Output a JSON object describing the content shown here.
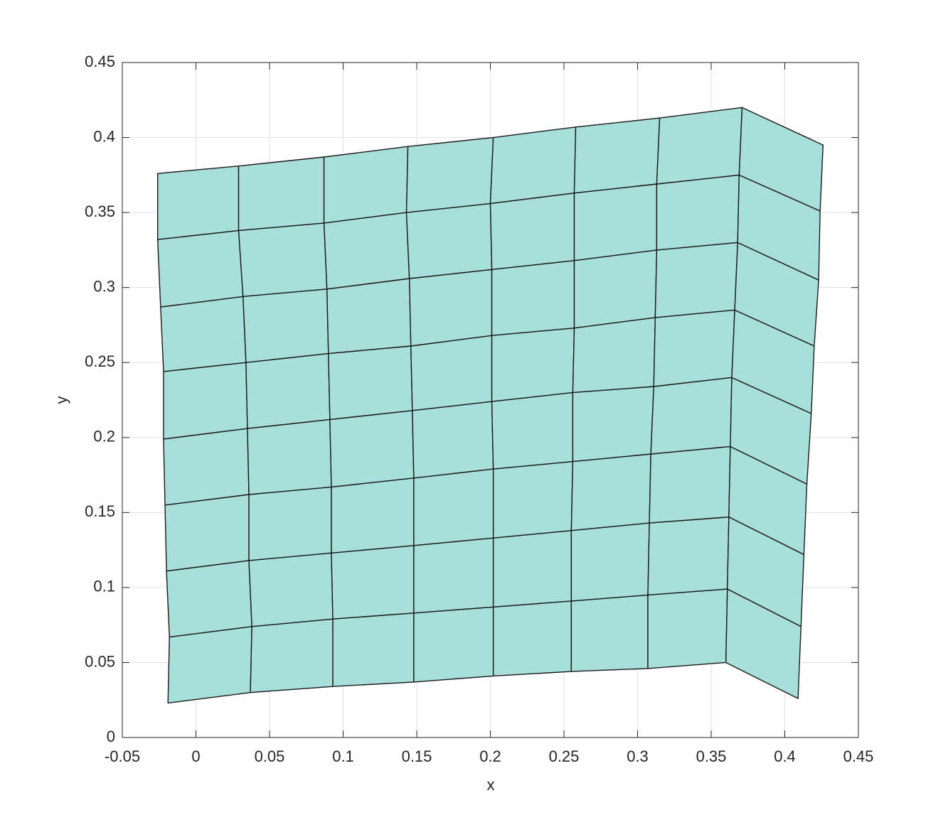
{
  "chart_data": {
    "type": "mesh",
    "xlabel": "x",
    "ylabel": "y",
    "xlim": [
      -0.05,
      0.45
    ],
    "ylim": [
      0,
      0.45
    ],
    "xticks": [
      -0.05,
      0,
      0.05,
      0.1,
      0.15,
      0.2,
      0.25,
      0.3,
      0.35,
      0.4,
      0.45
    ],
    "yticks": [
      0,
      0.05,
      0.1,
      0.15,
      0.2,
      0.25,
      0.3,
      0.35,
      0.4,
      0.45
    ],
    "grid": true,
    "face_color": "#a8dfda",
    "edge_color": "#1a1a1a",
    "x": [
      [
        -0.019,
        0.037,
        0.093,
        0.148,
        0.202,
        0.255,
        0.307,
        0.36,
        0.409
      ],
      [
        -0.018,
        0.038,
        0.093,
        0.148,
        0.202,
        0.255,
        0.307,
        0.361,
        0.411
      ],
      [
        -0.02,
        0.036,
        0.092,
        0.148,
        0.202,
        0.255,
        0.308,
        0.362,
        0.413
      ],
      [
        -0.021,
        0.036,
        0.092,
        0.148,
        0.202,
        0.256,
        0.309,
        0.363,
        0.415
      ],
      [
        -0.022,
        0.035,
        0.091,
        0.147,
        0.201,
        0.256,
        0.311,
        0.364,
        0.418
      ],
      [
        -0.022,
        0.034,
        0.09,
        0.146,
        0.201,
        0.257,
        0.312,
        0.366,
        0.42
      ],
      [
        -0.024,
        0.032,
        0.089,
        0.145,
        0.201,
        0.257,
        0.313,
        0.368,
        0.423
      ],
      [
        -0.026,
        0.029,
        0.087,
        0.143,
        0.2,
        0.257,
        0.313,
        0.369,
        0.424
      ],
      [
        -0.026,
        0.029,
        0.087,
        0.144,
        0.202,
        0.258,
        0.315,
        0.371,
        0.426
      ]
    ],
    "y": [
      [
        0.023,
        0.03,
        0.034,
        0.037,
        0.041,
        0.044,
        0.046,
        0.05,
        0.026
      ],
      [
        0.067,
        0.074,
        0.079,
        0.083,
        0.087,
        0.091,
        0.095,
        0.099,
        0.074
      ],
      [
        0.111,
        0.118,
        0.123,
        0.128,
        0.133,
        0.138,
        0.143,
        0.147,
        0.122
      ],
      [
        0.155,
        0.162,
        0.167,
        0.173,
        0.179,
        0.184,
        0.189,
        0.194,
        0.169
      ],
      [
        0.199,
        0.206,
        0.212,
        0.218,
        0.224,
        0.23,
        0.234,
        0.24,
        0.216
      ],
      [
        0.244,
        0.25,
        0.256,
        0.261,
        0.268,
        0.273,
        0.28,
        0.285,
        0.261
      ],
      [
        0.287,
        0.294,
        0.299,
        0.306,
        0.312,
        0.318,
        0.325,
        0.33,
        0.305
      ],
      [
        0.332,
        0.338,
        0.343,
        0.35,
        0.356,
        0.363,
        0.369,
        0.375,
        0.351
      ],
      [
        0.376,
        0.381,
        0.387,
        0.394,
        0.4,
        0.407,
        0.413,
        0.42,
        0.395
      ]
    ]
  }
}
